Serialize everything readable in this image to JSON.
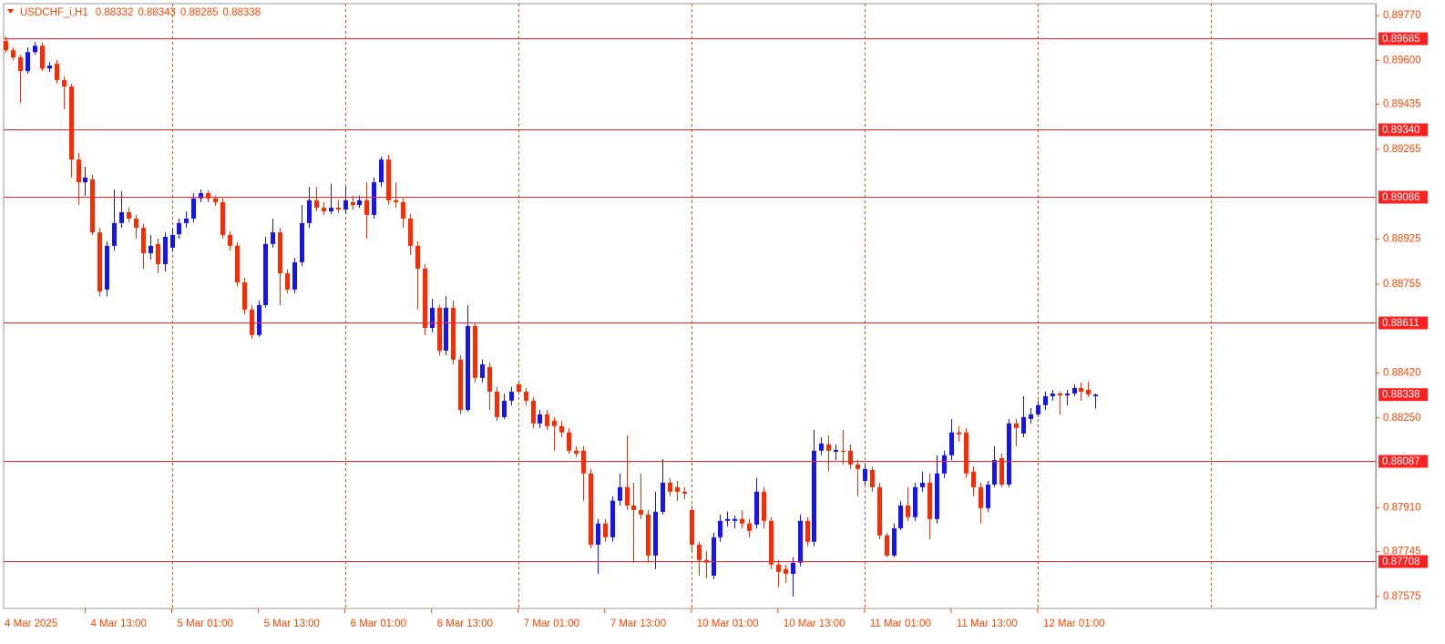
{
  "chart_data": {
    "type": "candlestick",
    "title": "USDCHF_i,H1",
    "bull_color": "#1414f5",
    "bear_color": "#ff2a00",
    "axis_color": "#ff4500",
    "level_color": "#ff2020",
    "grid": true,
    "xlim": [
      -0.3,
      189.85
    ],
    "ylim": [
      0.8753,
      0.89815
    ],
    "yticks": [
      {
        "value": 0.8977,
        "label": "0.89770"
      },
      {
        "value": 0.896,
        "label": "0.89600"
      },
      0.89435,
      0.89265,
      0.88925,
      0.88755,
      {
        "value": 0.8842,
        "label": "0.88420"
      },
      {
        "value": 0.8825,
        "label": "0.88250"
      },
      {
        "value": 0.8791,
        "label": "0.87910"
      },
      0.87745,
      0.87575
    ],
    "xticks": [
      {
        "value": -1,
        "label": "4 Mar 2025"
      },
      {
        "value": 11,
        "label": "4 Mar 13:00"
      },
      {
        "value": 23,
        "label": "5 Mar 01:00"
      },
      {
        "value": 35,
        "label": "5 Mar 13:00"
      },
      {
        "value": 47,
        "label": "6 Mar 01:00"
      },
      {
        "value": 59,
        "label": "6 Mar 13:00"
      },
      {
        "value": 71,
        "label": "7 Mar 01:00"
      },
      {
        "value": 83,
        "label": "7 Mar 13:00"
      },
      {
        "value": 95,
        "label": "10 Mar 01:00"
      },
      {
        "value": 107,
        "label": "10 Mar 13:00"
      },
      {
        "value": 119,
        "label": "11 Mar 01:00"
      },
      {
        "value": 131,
        "label": "11 Mar 13:00"
      },
      {
        "value": 143,
        "label": "12 Mar 01:00"
      }
    ],
    "xgrid": [
      23,
      47,
      71,
      95,
      119,
      143,
      167
    ],
    "levels": [
      0.89685,
      {
        "value": 0.8934,
        "label": "0.89340"
      },
      0.89086,
      0.88611,
      0.88087,
      0.87708
    ],
    "open": [
      0.89674,
      0.89639,
      0.89612,
      0.8956,
      0.89632,
      0.89656,
      0.8957,
      0.89588,
      0.89526,
      0.89502,
      0.89226,
      0.8914,
      0.89151,
      0.88951,
      0.88735,
      0.889,
      0.88986,
      0.89027,
      0.89003,
      0.88968,
      0.88872,
      0.88907,
      0.88831,
      0.88893,
      0.88944,
      0.88986,
      0.89003,
      0.89079,
      0.89099,
      0.89079,
      0.89065,
      0.88941,
      0.889,
      0.88762,
      0.88659,
      0.88563,
      0.88676,
      0.88907,
      0.88951,
      0.88796,
      0.88735,
      0.88838,
      0.88986,
      0.89072,
      0.89044,
      0.8903,
      0.89044,
      0.89037,
      0.89065,
      0.89054,
      0.89072,
      0.89017,
      0.8914,
      0.89226,
      0.89072,
      0.89065,
      0.89003,
      0.889,
      0.88814,
      0.8859,
      0.88666,
      0.88504,
      0.88666,
      0.8847,
      0.8828,
      0.88597,
      0.88401,
      0.88442,
      0.88349,
      0.88253,
      0.88315,
      0.88377,
      0.88349,
      0.88315,
      0.88229,
      0.88263,
      0.88239,
      0.88219,
      0.88195,
      0.88126,
      0.88126,
      0.8804,
      0.87771,
      0.87851,
      0.87799,
      0.87937,
      0.87988,
      0.87919,
      0.87902,
      0.87885,
      0.8773,
      0.87895,
      0.88005,
      0.87988,
      0.87971,
      0.87902,
      0.87771,
      0.87713,
      0.87654,
      0.87799,
      0.87861,
      0.87861,
      0.87868,
      0.87851,
      0.87847,
      0.87971,
      0.87861,
      0.87696,
      0.87679,
      0.87661,
      0.87703,
      0.87861,
      0.87782,
      0.88126,
      0.8815,
      0.88122,
      0.88126,
      0.88126,
      0.88074,
      0.88012,
      0.88053,
      0.87988,
      0.87806,
      0.8773,
      0.87833,
      0.87919,
      0.87875,
      0.87988,
      0.88005,
      0.87868,
      0.8804,
      0.88109,
      0.88195,
      0.88195,
      0.88047,
      0.87988,
      0.87909,
      0.87998,
      0.88098,
      0.87998,
      0.88229,
      0.88191,
      0.88246,
      0.88263,
      0.88298,
      0.88332,
      0.88342,
      0.88335,
      0.88342,
      0.88363,
      0.88356,
      0.88332
    ],
    "high": [
      0.89691,
      0.8965,
      0.89622,
      0.8965,
      0.8967,
      0.89667,
      0.89595,
      0.89601,
      0.8954,
      0.89512,
      0.89251,
      0.89199,
      0.89168,
      0.88968,
      0.88917,
      0.89113,
      0.89106,
      0.89044,
      0.89017,
      0.88982,
      0.88941,
      0.88927,
      0.88951,
      0.88968,
      0.89003,
      0.8903,
      0.89099,
      0.89113,
      0.8911,
      0.89089,
      0.89079,
      0.88955,
      0.88913,
      0.88779,
      0.88676,
      0.88693,
      0.88934,
      0.89003,
      0.88968,
      0.8881,
      0.88855,
      0.89054,
      0.89123,
      0.89123,
      0.89065,
      0.89134,
      0.89072,
      0.89123,
      0.89089,
      0.89089,
      0.8914,
      0.89158,
      0.89237,
      0.89244,
      0.8914,
      0.89079,
      0.8902,
      0.88917,
      0.88831,
      0.887,
      0.88676,
      0.8871,
      0.88693,
      0.88487,
      0.88676,
      0.88607,
      0.8847,
      0.88459,
      0.88367,
      0.88342,
      0.88367,
      0.88391,
      0.88363,
      0.88329,
      0.8828,
      0.8828,
      0.88253,
      0.88239,
      0.88212,
      0.88143,
      0.88143,
      0.88057,
      0.87868,
      0.87868,
      0.87954,
      0.8804,
      0.88184,
      0.88005,
      0.8804,
      0.87902,
      0.87971,
      0.88095,
      0.88023,
      0.88012,
      0.87988,
      0.87919,
      0.87782,
      0.87747,
      0.87816,
      0.87885,
      0.87895,
      0.87881,
      0.87902,
      0.87868,
      0.88023,
      0.87988,
      0.87875,
      0.87713,
      0.87696,
      0.87723,
      0.87885,
      0.87875,
      0.88205,
      0.88177,
      0.88184,
      0.8815,
      0.88205,
      0.8815,
      0.88091,
      0.88074,
      0.88067,
      0.88005,
      0.87816,
      0.87851,
      0.87937,
      0.87988,
      0.88005,
      0.88047,
      0.8804,
      0.88109,
      0.88126,
      0.88246,
      0.88219,
      0.88212,
      0.88067,
      0.88005,
      0.88012,
      0.88143,
      0.88115,
      0.88246,
      0.88246,
      0.88332,
      0.88287,
      0.88315,
      0.88349,
      0.88356,
      0.88349,
      0.88356,
      0.88377,
      0.88384,
      0.88387,
      0.88343
    ],
    "low": [
      0.89629,
      0.89601,
      0.8944,
      0.8955,
      0.89622,
      0.8956,
      0.89557,
      0.89512,
      0.89416,
      0.89158,
      0.89054,
      0.89089,
      0.88941,
      0.8871,
      0.8871,
      0.88882,
      0.88968,
      0.88989,
      0.88927,
      0.88814,
      0.88848,
      0.88796,
      0.88803,
      0.88879,
      0.88927,
      0.88968,
      0.88989,
      0.89065,
      0.89065,
      0.89051,
      0.88927,
      0.88882,
      0.88745,
      0.88642,
      0.88549,
      0.88556,
      0.88666,
      0.88893,
      0.88676,
      0.88721,
      0.88721,
      0.88824,
      0.88968,
      0.8903,
      0.89017,
      0.8902,
      0.89024,
      0.8902,
      0.89037,
      0.89044,
      0.88927,
      0.89003,
      0.89123,
      0.89054,
      0.89044,
      0.88968,
      0.88865,
      0.88659,
      0.88563,
      0.88573,
      0.88487,
      0.88487,
      0.88452,
      0.88263,
      0.88274,
      0.88384,
      0.88384,
      0.8828,
      0.88239,
      0.88246,
      0.88298,
      0.88339,
      0.88298,
      0.88212,
      0.88212,
      0.88205,
      0.88126,
      0.88177,
      0.88115,
      0.88102,
      0.87937,
      0.87758,
      0.87661,
      0.87782,
      0.87782,
      0.87919,
      0.87902,
      0.87703,
      0.87868,
      0.87703,
      0.87679,
      0.87885,
      0.87954,
      0.87937,
      0.87943,
      0.87747,
      0.87654,
      0.87644,
      0.87641,
      0.87782,
      0.8784,
      0.87833,
      0.87833,
      0.87799,
      0.87833,
      0.87833,
      0.87679,
      0.8761,
      0.87627,
      0.87575,
      0.87689,
      0.87765,
      0.87765,
      0.88109,
      0.88047,
      0.88091,
      0.88074,
      0.88057,
      0.87954,
      0.87998,
      0.87971,
      0.87792,
      0.87723,
      0.87723,
      0.87826,
      0.87861,
      0.87861,
      0.87971,
      0.87792,
      0.87851,
      0.88023,
      0.88091,
      0.8816,
      0.88023,
      0.87954,
      0.87851,
      0.87895,
      0.87988,
      0.87988,
      0.87988,
      0.88143,
      0.88177,
      0.88229,
      0.88253,
      0.8828,
      0.88315,
      0.88263,
      0.88298,
      0.88332,
      0.88315,
      0.88329,
      0.88285
    ],
    "close": [
      0.89639,
      0.89612,
      0.8956,
      0.89632,
      0.89656,
      0.8957,
      0.89581,
      0.89526,
      0.89502,
      0.89226,
      0.8914,
      0.89158,
      0.88951,
      0.88728,
      0.889,
      0.88986,
      0.89027,
      0.89003,
      0.88968,
      0.88872,
      0.889,
      0.88831,
      0.88934,
      0.88941,
      0.88986,
      0.89003,
      0.89079,
      0.89099,
      0.89079,
      0.89065,
      0.88941,
      0.889,
      0.88762,
      0.88659,
      0.88563,
      0.88676,
      0.88907,
      0.88951,
      0.88796,
      0.88735,
      0.88838,
      0.88986,
      0.89072,
      0.89044,
      0.8903,
      0.89044,
      0.89037,
      0.89072,
      0.89054,
      0.89072,
      0.89017,
      0.8914,
      0.89226,
      0.89072,
      0.89065,
      0.89003,
      0.889,
      0.88814,
      0.8859,
      0.88666,
      0.88504,
      0.88666,
      0.8847,
      0.8828,
      0.88597,
      0.88401,
      0.88452,
      0.88349,
      0.88253,
      0.88315,
      0.88349,
      0.88349,
      0.88315,
      0.88229,
      0.88263,
      0.88219,
      0.88219,
      0.88195,
      0.88126,
      0.88115,
      0.8804,
      0.87771,
      0.87851,
      0.87799,
      0.87937,
      0.87988,
      0.87919,
      0.87902,
      0.87885,
      0.8773,
      0.87895,
      0.88005,
      0.87971,
      0.87971,
      0.87964,
      0.87771,
      0.87713,
      0.87703,
      0.87799,
      0.87861,
      0.87868,
      0.87868,
      0.87851,
      0.87823,
      0.87971,
      0.87861,
      0.87696,
      0.87668,
      0.87661,
      0.87703,
      0.87861,
      0.87782,
      0.88126,
      0.88153,
      0.88126,
      0.88129,
      0.88122,
      0.88074,
      0.88057,
      0.88057,
      0.87988,
      0.87806,
      0.8773,
      0.87833,
      0.87919,
      0.87875,
      0.87988,
      0.88005,
      0.87868,
      0.8804,
      0.88109,
      0.88195,
      0.88188,
      0.8804,
      0.87988,
      0.87909,
      0.87998,
      0.88091,
      0.87998,
      0.88229,
      0.88212,
      0.88253,
      0.88263,
      0.88298,
      0.88332,
      0.88342,
      0.88335,
      0.88342,
      0.88363,
      0.88349,
      0.88339,
      0.88338
    ]
  }
}
